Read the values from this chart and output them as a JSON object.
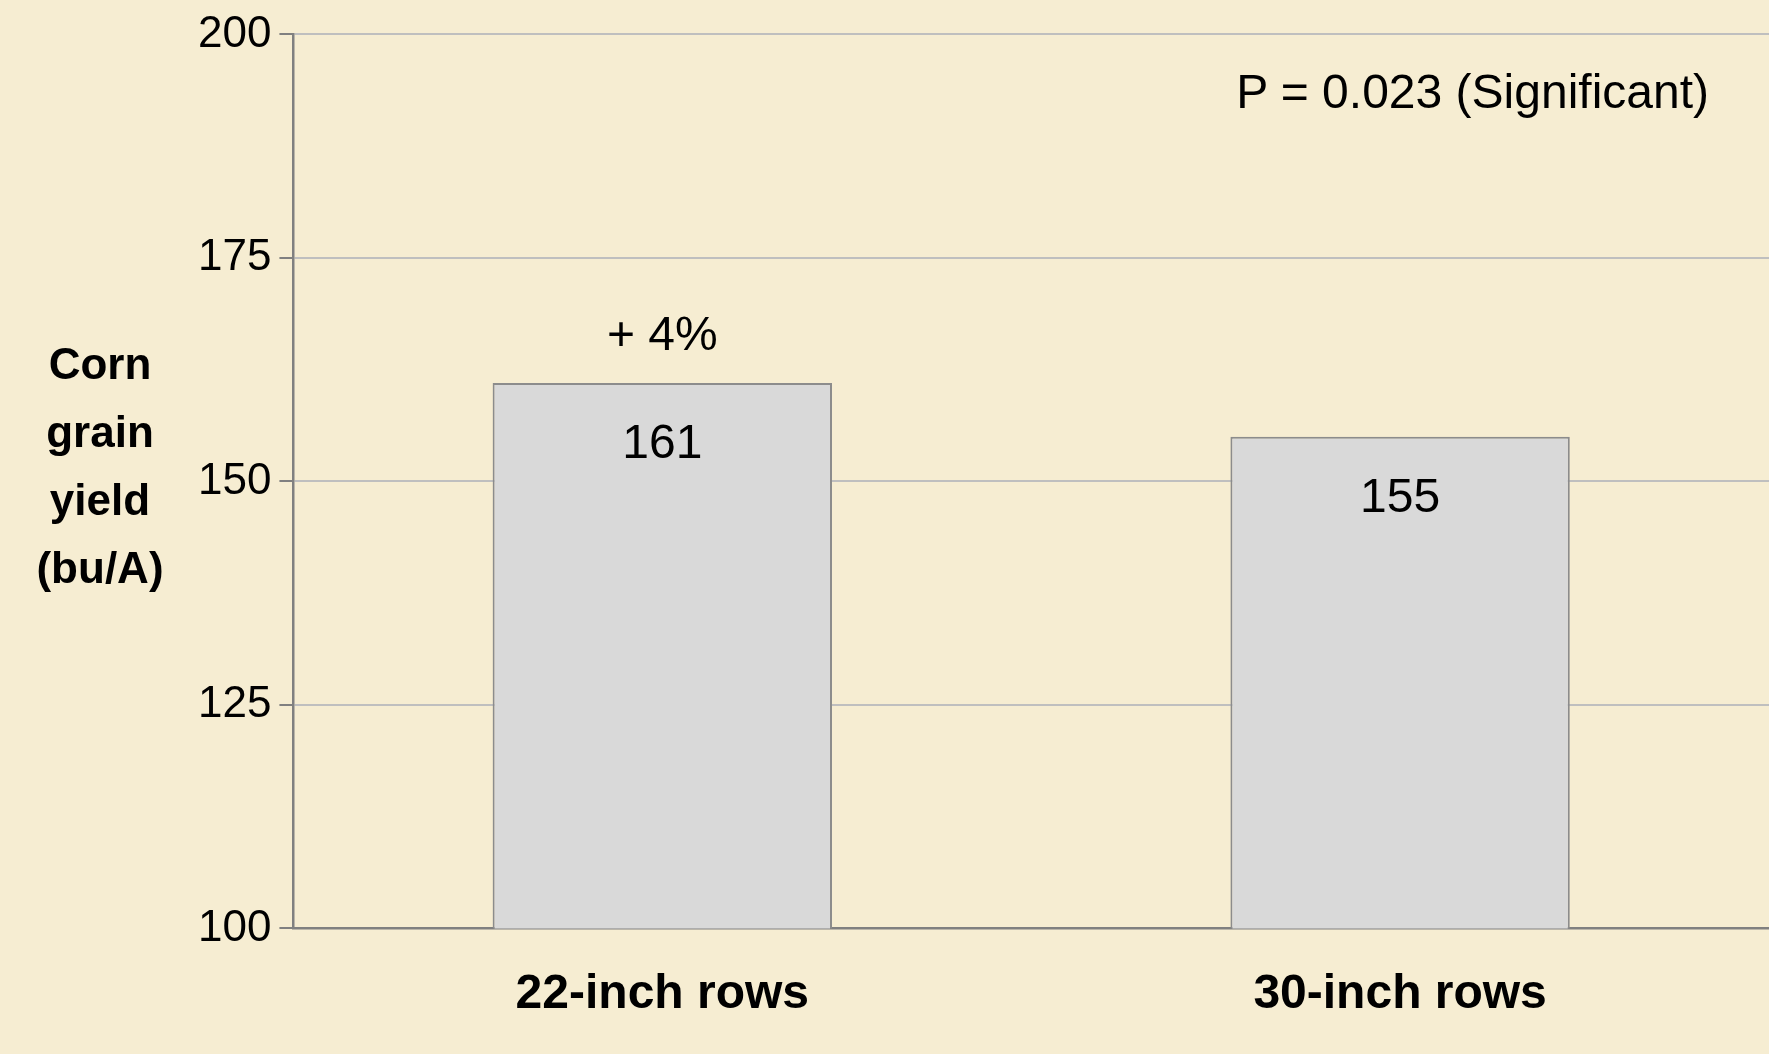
{
  "chart_data": {
    "type": "bar",
    "ylabel": "Corn grain yield (bu/A)",
    "categories": [
      "22-inch rows",
      "30-inch rows"
    ],
    "values": [
      161,
      155
    ],
    "color": "#d9d9d9",
    "ylim": [
      100,
      200
    ],
    "yticks": [
      100,
      125,
      150,
      175,
      200
    ],
    "grid": "y",
    "legend": false,
    "data_labels": true,
    "annotations": [
      {
        "text": "+ 4%",
        "x": "22-inch rows",
        "y": 161
      },
      "P = 0.023 (Significant)"
    ]
  }
}
